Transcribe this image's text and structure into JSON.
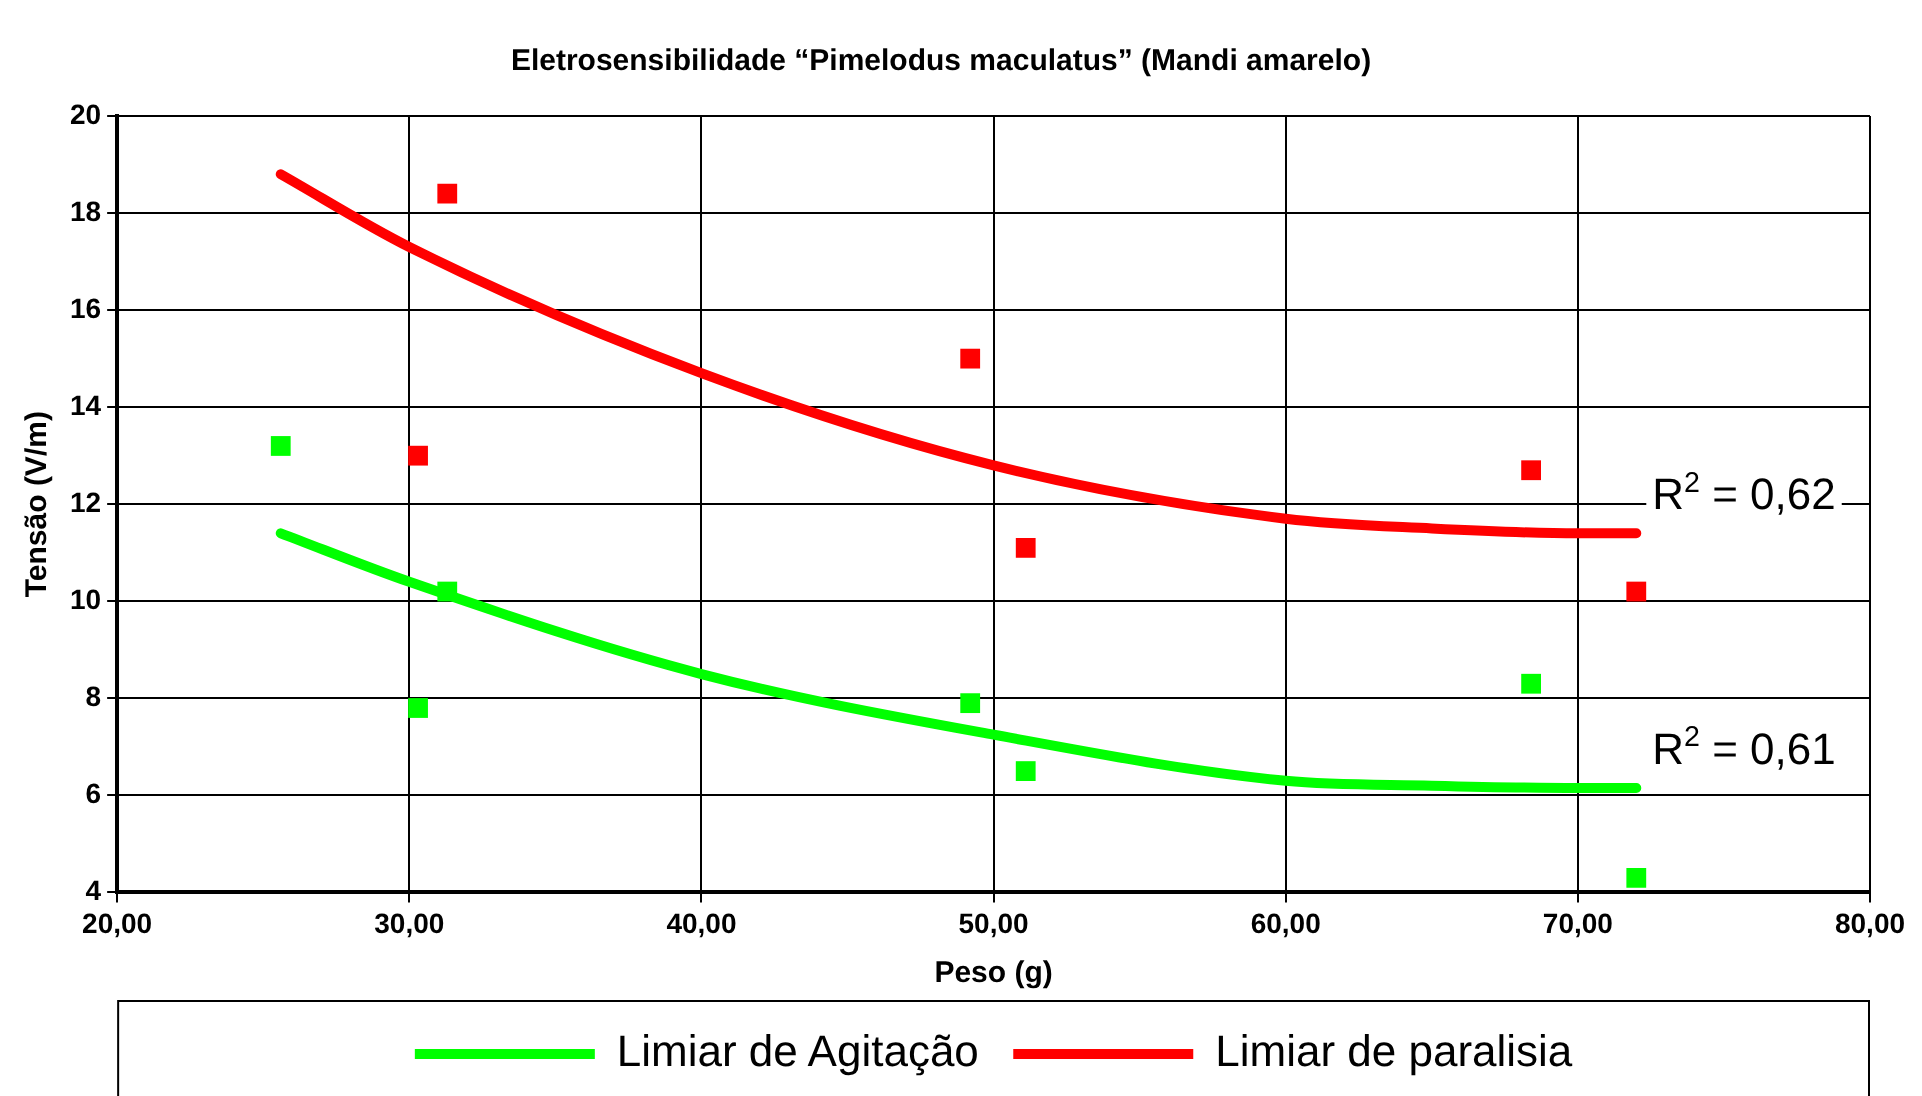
{
  "chart_data": {
    "type": "scatter",
    "title": "Eletrosensibilidade “Pimelodus maculatus” (Mandi amarelo)",
    "xlabel": "Peso (g)",
    "ylabel": "Tensão (V/m)",
    "xlim": [
      20,
      80
    ],
    "xticks": [
      {
        "value": 20,
        "label": "20,00"
      },
      {
        "value": 30,
        "label": "30,00"
      },
      {
        "value": 40,
        "label": "40,00"
      },
      {
        "value": 50,
        "label": "50,00"
      },
      {
        "value": 60,
        "label": "60,00"
      },
      {
        "value": 70,
        "label": "70,00"
      },
      {
        "value": 80,
        "label": "80,00"
      }
    ],
    "ylim": [
      4,
      20
    ],
    "yticks": [
      4,
      6,
      8,
      10,
      12,
      14,
      16,
      18,
      20
    ],
    "grid": true,
    "legend": "bottom",
    "marker": "square",
    "series": [
      {
        "color": "#00ff00",
        "x": [
          25.6,
          31.3,
          30.3,
          49.2,
          51.1,
          68.4,
          72.0
        ],
        "values": [
          13.2,
          10.2,
          7.8,
          7.9,
          6.5,
          8.3,
          4.3
        ]
      },
      {
        "color": "#ff0000",
        "x": [
          31.3,
          30.3,
          49.2,
          51.1,
          68.4,
          72.0
        ],
        "values": [
          18.4,
          13.0,
          15.0,
          11.1,
          12.7,
          10.2
        ]
      },
      {
        "type": "line",
        "marker": "none",
        "name": "Limiar de Agitação",
        "color": "#00ff00",
        "x": [
          25.6,
          30,
          40,
          50,
          60,
          65,
          70,
          72.0
        ],
        "values": [
          11.4,
          10.4,
          8.5,
          7.25,
          6.3,
          6.2,
          6.15,
          6.15
        ]
      },
      {
        "type": "line",
        "marker": "none",
        "name": "Limiar de paralisia",
        "color": "#ff0000",
        "x": [
          25.6,
          30,
          40,
          50,
          60,
          65,
          70,
          72.0
        ],
        "values": [
          18.8,
          17.3,
          14.7,
          12.8,
          11.7,
          11.5,
          11.4,
          11.4
        ]
      }
    ],
    "annotations": [
      {
        "text": "R$^{2}$ = 0,62",
        "x": 72.0,
        "y": 11.4
      },
      {
        "text": "R$^{2}$ = 0,61",
        "x": 72.0,
        "y": 6.15
      }
    ]
  }
}
